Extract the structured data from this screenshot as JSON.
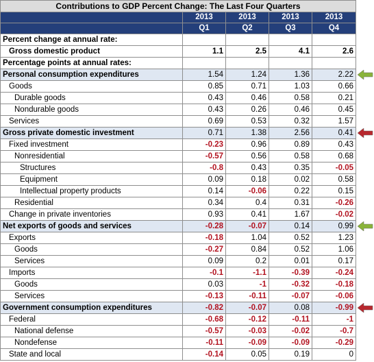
{
  "title": "Contributions to GDP Percent Change: The Last Four Quarters",
  "header": {
    "years": [
      "2013",
      "2013",
      "2013",
      "2013"
    ],
    "quarters": [
      "Q1",
      "Q2",
      "Q3",
      "Q4"
    ]
  },
  "rows": [
    {
      "label": "Percent change at annual rate:",
      "indent": 0,
      "bold": true,
      "values": []
    },
    {
      "label": "Gross domestic product",
      "indent": 1,
      "bold": true,
      "values": [
        "1.1",
        "2.5",
        "4.1",
        "2.6"
      ],
      "bold_values": true
    },
    {
      "label": "Percentage points at annual rates:",
      "indent": 0,
      "bold": true,
      "values": []
    },
    {
      "label": "Personal consumption expenditures",
      "indent": 0,
      "bold": true,
      "highlight": true,
      "values": [
        "1.54",
        "1.24",
        "1.36",
        "2.22"
      ],
      "arrow": "green"
    },
    {
      "label": "Goods",
      "indent": 1,
      "values": [
        "0.85",
        "0.71",
        "1.03",
        "0.66"
      ]
    },
    {
      "label": "Durable goods",
      "indent": 2,
      "values": [
        "0.43",
        "0.46",
        "0.58",
        "0.21"
      ]
    },
    {
      "label": "Nondurable goods",
      "indent": 2,
      "values": [
        "0.43",
        "0.26",
        "0.46",
        "0.45"
      ]
    },
    {
      "label": "Services",
      "indent": 1,
      "values": [
        "0.69",
        "0.53",
        "0.32",
        "1.57"
      ]
    },
    {
      "label": "Gross private domestic investment",
      "indent": 0,
      "bold": true,
      "highlight": true,
      "values": [
        "0.71",
        "1.38",
        "2.56",
        "0.41"
      ],
      "arrow": "red"
    },
    {
      "label": "Fixed investment",
      "indent": 1,
      "values": [
        "-0.23",
        "0.96",
        "0.89",
        "0.43"
      ]
    },
    {
      "label": "Nonresidential",
      "indent": 2,
      "values": [
        "-0.57",
        "0.56",
        "0.58",
        "0.68"
      ]
    },
    {
      "label": "Structures",
      "indent": 3,
      "values": [
        "-0.8",
        "0.43",
        "0.35",
        "-0.05"
      ]
    },
    {
      "label": "Equipment",
      "indent": 3,
      "values": [
        "0.09",
        "0.18",
        "0.02",
        "0.58"
      ]
    },
    {
      "label": "Intellectual property products",
      "indent": 3,
      "values": [
        "0.14",
        "-0.06",
        "0.22",
        "0.15"
      ]
    },
    {
      "label": "Residential",
      "indent": 2,
      "values": [
        "0.34",
        "0.4",
        "0.31",
        "-0.26"
      ]
    },
    {
      "label": "Change in private inventories",
      "indent": 1,
      "values": [
        "0.93",
        "0.41",
        "1.67",
        "-0.02"
      ]
    },
    {
      "label": "Net exports of goods and services",
      "indent": 0,
      "bold": true,
      "highlight": true,
      "values": [
        "-0.28",
        "-0.07",
        "0.14",
        "0.99"
      ],
      "arrow": "green"
    },
    {
      "label": "Exports",
      "indent": 1,
      "values": [
        "-0.18",
        "1.04",
        "0.52",
        "1.23"
      ]
    },
    {
      "label": "Goods",
      "indent": 2,
      "values": [
        "-0.27",
        "0.84",
        "0.52",
        "1.06"
      ]
    },
    {
      "label": "Services",
      "indent": 2,
      "values": [
        "0.09",
        "0.2",
        "0.01",
        "0.17"
      ]
    },
    {
      "label": "Imports",
      "indent": 1,
      "values": [
        "-0.1",
        "-1.1",
        "-0.39",
        "-0.24"
      ]
    },
    {
      "label": "Goods",
      "indent": 2,
      "values": [
        "0.03",
        "-1",
        "-0.32",
        "-0.18"
      ]
    },
    {
      "label": "Services",
      "indent": 2,
      "values": [
        "-0.13",
        "-0.11",
        "-0.07",
        "-0.06"
      ]
    },
    {
      "label": "Government consumption expenditures",
      "indent": 0,
      "bold": true,
      "highlight": true,
      "values": [
        "-0.82",
        "-0.07",
        "0.08",
        "-0.99"
      ],
      "arrow": "red"
    },
    {
      "label": "Federal",
      "indent": 1,
      "values": [
        "-0.68",
        "-0.12",
        "-0.11",
        "-1"
      ]
    },
    {
      "label": "National defense",
      "indent": 2,
      "values": [
        "-0.57",
        "-0.03",
        "-0.02",
        "-0.7"
      ]
    },
    {
      "label": "Nondefense",
      "indent": 2,
      "values": [
        "-0.11",
        "-0.09",
        "-0.09",
        "-0.29"
      ]
    },
    {
      "label": "State and local",
      "indent": 1,
      "values": [
        "-0.14",
        "0.05",
        "0.19",
        "0"
      ]
    }
  ],
  "colors": {
    "header_bg": "#243f7a",
    "highlight_row": "#dfe7f2",
    "negative_text": "#b2121f",
    "arrow_green": "#8ab43a",
    "arrow_red": "#b8282e"
  }
}
